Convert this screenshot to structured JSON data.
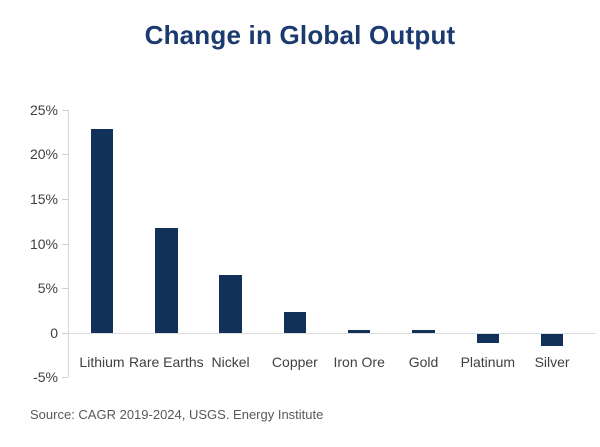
{
  "title": "Change in Global Output",
  "source": "Source: CAGR 2019-2024, USGS. Energy Institute",
  "colors": {
    "bar": "#113158",
    "title": "#1b3a6f",
    "axis": "#d6d6d6",
    "tick_label": "#404040",
    "source_text": "#595959"
  },
  "chart_data": {
    "type": "bar",
    "title": "Change in Global Output",
    "categories": [
      "Lithium",
      "Rare Earths",
      "Nickel",
      "Copper",
      "Iron Ore",
      "Gold",
      "Platinum",
      "Silver"
    ],
    "values": [
      22.8,
      11.7,
      6.5,
      2.3,
      0.3,
      0.3,
      -1.0,
      -1.4
    ],
    "xlabel": "",
    "ylabel": "",
    "ylim": [
      -5,
      25
    ],
    "yticks": [
      {
        "value": 25,
        "label": "25%"
      },
      {
        "value": 20,
        "label": "20%"
      },
      {
        "value": 15,
        "label": "15%"
      },
      {
        "value": 10,
        "label": "10%"
      },
      {
        "value": 5,
        "label": "5%"
      },
      {
        "value": 0,
        "label": "0"
      },
      {
        "value": -5,
        "label": "-5%"
      }
    ],
    "grid": false,
    "legend": false,
    "source_note": "Source: CAGR 2019-2024, USGS. Energy Institute"
  }
}
